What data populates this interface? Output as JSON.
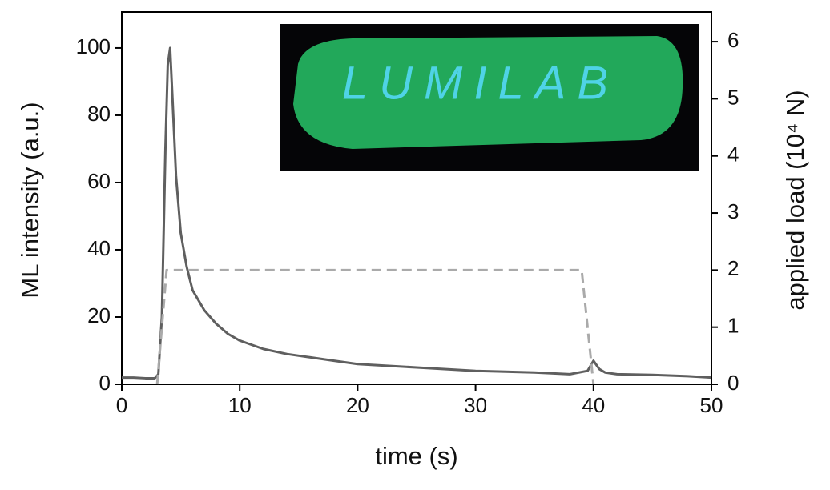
{
  "chart_data": {
    "type": "line",
    "xlabel": "time (s)",
    "ylabel": "ML intensity (a.u.)",
    "y2label": "applied load (10⁴ N)",
    "inset_text": "LUMILAB",
    "xlim": [
      0,
      50
    ],
    "xticks": [
      0,
      10,
      20,
      30,
      40,
      50
    ],
    "ylim": [
      0,
      110.7
    ],
    "yticks": [
      0,
      20,
      40,
      60,
      80,
      100
    ],
    "y2lim": [
      0,
      6.52
    ],
    "y2ticks": [
      0,
      1,
      2,
      3,
      4,
      5,
      6
    ],
    "series": [
      {
        "color": "#5f5f5f",
        "dash": false,
        "x": [
          0,
          1,
          2,
          2.8,
          3.1,
          3.4,
          3.7,
          3.9,
          4.1,
          4.3,
          4.6,
          5,
          5.5,
          6,
          7,
          8,
          9,
          10,
          12,
          14,
          16,
          18,
          20,
          25,
          30,
          35,
          38,
          39.5,
          40,
          40.5,
          41,
          42,
          45,
          48,
          50
        ],
        "values": [
          2,
          2,
          1.8,
          1.8,
          3,
          20,
          70,
          95,
          100,
          85,
          62,
          45,
          35,
          28,
          22,
          18,
          15,
          13,
          10.5,
          9,
          8,
          7,
          6,
          5,
          4,
          3.5,
          3,
          4,
          7,
          4.5,
          3.5,
          3,
          2.8,
          2.4,
          2
        ]
      },
      {
        "color": "#aaaaaa",
        "dash": true,
        "axis": "y2",
        "x": [
          3,
          3.8,
          39,
          40
        ],
        "values": [
          0,
          2,
          2,
          0
        ]
      }
    ]
  }
}
